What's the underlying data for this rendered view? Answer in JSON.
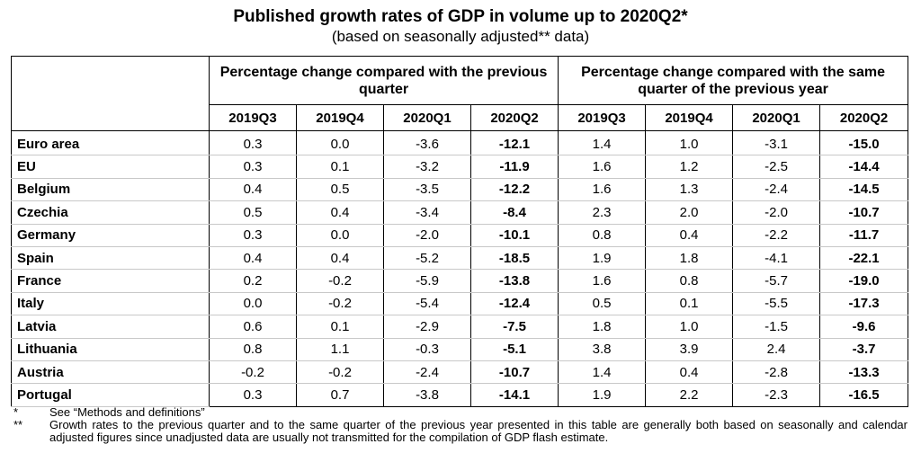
{
  "title": "Published growth rates of GDP in volume up to 2020Q2*",
  "subtitle": "(based on seasonally adjusted** data)",
  "table": {
    "group_headers": [
      "Percentage change compared with the previous quarter",
      "Percentage change compared with the same quarter of the previous year"
    ],
    "quarters": [
      "2019Q3",
      "2019Q4",
      "2020Q1",
      "2020Q2",
      "2019Q3",
      "2019Q4",
      "2020Q1",
      "2020Q2"
    ],
    "rows": [
      {
        "country": "Euro area",
        "values": [
          "0.3",
          "0.0",
          "-3.6",
          "-12.1",
          "1.4",
          "1.0",
          "-3.1",
          "-15.0"
        ]
      },
      {
        "country": "EU",
        "values": [
          "0.3",
          "0.1",
          "-3.2",
          "-11.9",
          "1.6",
          "1.2",
          "-2.5",
          "-14.4"
        ]
      },
      {
        "country": "Belgium",
        "values": [
          "0.4",
          "0.5",
          "-3.5",
          "-12.2",
          "1.6",
          "1.3",
          "-2.4",
          "-14.5"
        ]
      },
      {
        "country": "Czechia",
        "values": [
          "0.5",
          "0.4",
          "-3.4",
          "-8.4",
          "2.3",
          "2.0",
          "-2.0",
          "-10.7"
        ]
      },
      {
        "country": "Germany",
        "values": [
          "0.3",
          "0.0",
          "-2.0",
          "-10.1",
          "0.8",
          "0.4",
          "-2.2",
          "-11.7"
        ]
      },
      {
        "country": "Spain",
        "values": [
          "0.4",
          "0.4",
          "-5.2",
          "-18.5",
          "1.9",
          "1.8",
          "-4.1",
          "-22.1"
        ]
      },
      {
        "country": "France",
        "values": [
          "0.2",
          "-0.2",
          "-5.9",
          "-13.8",
          "1.6",
          "0.8",
          "-5.7",
          "-19.0"
        ]
      },
      {
        "country": "Italy",
        "values": [
          "0.0",
          "-0.2",
          "-5.4",
          "-12.4",
          "0.5",
          "0.1",
          "-5.5",
          "-17.3"
        ]
      },
      {
        "country": "Latvia",
        "values": [
          "0.6",
          "0.1",
          "-2.9",
          "-7.5",
          "1.8",
          "1.0",
          "-1.5",
          "-9.6"
        ]
      },
      {
        "country": "Lithuania",
        "values": [
          "0.8",
          "1.1",
          "-0.3",
          "-5.1",
          "3.8",
          "3.9",
          "2.4",
          "-3.7"
        ]
      },
      {
        "country": "Austria",
        "values": [
          "-0.2",
          "-0.2",
          "-2.4",
          "-10.7",
          "1.4",
          "0.4",
          "-2.8",
          "-13.3"
        ]
      },
      {
        "country": "Portugal",
        "values": [
          "0.3",
          "0.7",
          "-3.8",
          "-14.1",
          "1.9",
          "2.2",
          "-2.3",
          "-16.5"
        ]
      }
    ]
  },
  "notes": [
    {
      "mark": "*",
      "text": "See “Methods and definitions”"
    },
    {
      "mark": "**",
      "text": "Growth rates to the previous quarter and to the same quarter of the previous year presented in this table are generally both based on seasonally and calendar adjusted figures since unadjusted data are usually not transmitted for the compilation of GDP flash estimate."
    }
  ]
}
